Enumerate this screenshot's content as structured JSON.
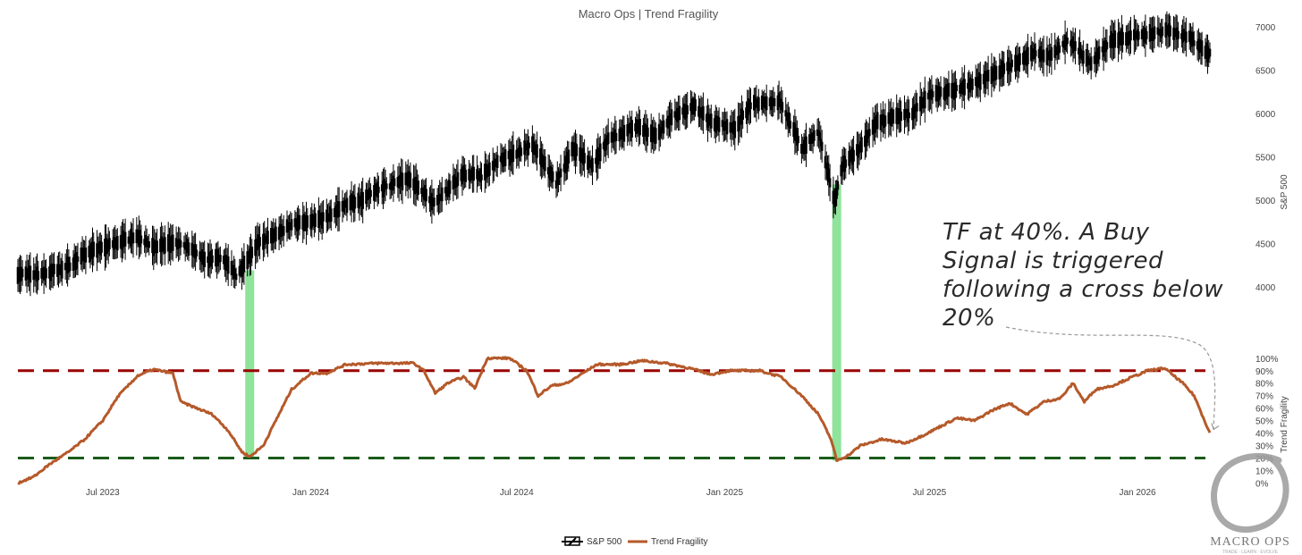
{
  "chart_data": {
    "type": "line",
    "title": "Macro Ops | Trend Fragility",
    "x_ticks": [
      "Jul 2023",
      "Jan 2024",
      "Jul 2024",
      "Jan 2025",
      "Jul 2025",
      "Jan 2026"
    ],
    "x_range": [
      "2023-04-17",
      "2026-03-06"
    ],
    "y_left": {
      "label": "S&P 500",
      "range": [
        3700,
        7050
      ],
      "ticks": [
        "4000",
        "4500",
        "5000",
        "5500",
        "6000",
        "6500",
        "7000"
      ]
    },
    "y_right": {
      "label": "Trend Fragility",
      "range": [
        -14,
        102
      ],
      "ticks": [
        "0%",
        "10%",
        "20%",
        "30%",
        "40%",
        "50%",
        "60%",
        "70%",
        "80%",
        "90%",
        "100%"
      ]
    },
    "series": [
      {
        "name": "S&P 500",
        "style": "candlestick",
        "color": "#000000",
        "points": [
          [
            "2023-04-17",
            4150
          ],
          [
            "2023-05-01",
            4140
          ],
          [
            "2023-05-15",
            4170
          ],
          [
            "2023-06-01",
            4240
          ],
          [
            "2023-06-15",
            4380
          ],
          [
            "2023-07-01",
            4450
          ],
          [
            "2023-07-15",
            4520
          ],
          [
            "2023-08-01",
            4590
          ],
          [
            "2023-08-15",
            4450
          ],
          [
            "2023-09-01",
            4510
          ],
          [
            "2023-09-15",
            4450
          ],
          [
            "2023-10-01",
            4300
          ],
          [
            "2023-10-15",
            4330
          ],
          [
            "2023-10-27",
            4130
          ],
          [
            "2023-11-15",
            4500
          ],
          [
            "2023-12-01",
            4600
          ],
          [
            "2023-12-15",
            4720
          ],
          [
            "2024-01-02",
            4750
          ],
          [
            "2024-01-15",
            4800
          ],
          [
            "2024-02-01",
            4950
          ],
          [
            "2024-02-15",
            5000
          ],
          [
            "2024-03-01",
            5130
          ],
          [
            "2024-03-28",
            5250
          ],
          [
            "2024-04-19",
            4970
          ],
          [
            "2024-05-15",
            5300
          ],
          [
            "2024-06-01",
            5280
          ],
          [
            "2024-06-15",
            5450
          ],
          [
            "2024-07-15",
            5630
          ],
          [
            "2024-08-05",
            5200
          ],
          [
            "2024-08-20",
            5600
          ],
          [
            "2024-09-06",
            5400
          ],
          [
            "2024-09-20",
            5700
          ],
          [
            "2024-10-15",
            5850
          ],
          [
            "2024-11-01",
            5730
          ],
          [
            "2024-11-15",
            5950
          ],
          [
            "2024-12-06",
            6080
          ],
          [
            "2024-12-20",
            5900
          ],
          [
            "2025-01-10",
            5830
          ],
          [
            "2025-01-24",
            6100
          ],
          [
            "2025-02-19",
            6140
          ],
          [
            "2025-03-10",
            5600
          ],
          [
            "2025-03-25",
            5780
          ],
          [
            "2025-04-08",
            4980
          ],
          [
            "2025-04-15",
            5400
          ],
          [
            "2025-05-01",
            5600
          ],
          [
            "2025-05-15",
            5900
          ],
          [
            "2025-06-01",
            5950
          ],
          [
            "2025-06-15",
            6000
          ],
          [
            "2025-07-01",
            6200
          ],
          [
            "2025-08-01",
            6300
          ],
          [
            "2025-09-01",
            6480
          ],
          [
            "2025-10-01",
            6700
          ],
          [
            "2025-10-15",
            6650
          ],
          [
            "2025-11-01",
            6850
          ],
          [
            "2025-11-20",
            6580
          ],
          [
            "2025-12-10",
            6850
          ],
          [
            "2026-01-05",
            6900
          ],
          [
            "2026-01-28",
            6960
          ],
          [
            "2026-02-15",
            6880
          ],
          [
            "2026-03-06",
            6680
          ]
        ]
      },
      {
        "name": "Trend Fragility",
        "style": "line",
        "color": "#b5592a",
        "points": [
          [
            "2023-04-17",
            0
          ],
          [
            "2023-05-01",
            5
          ],
          [
            "2023-05-15",
            15
          ],
          [
            "2023-06-01",
            25
          ],
          [
            "2023-06-15",
            35
          ],
          [
            "2023-07-01",
            50
          ],
          [
            "2023-07-15",
            70
          ],
          [
            "2023-08-01",
            86
          ],
          [
            "2023-08-15",
            91
          ],
          [
            "2023-09-01",
            88
          ],
          [
            "2023-09-08",
            65
          ],
          [
            "2023-09-22",
            60
          ],
          [
            "2023-10-06",
            55
          ],
          [
            "2023-10-20",
            42
          ],
          [
            "2023-11-01",
            25
          ],
          [
            "2023-11-08",
            21
          ],
          [
            "2023-11-20",
            30
          ],
          [
            "2023-12-01",
            50
          ],
          [
            "2023-12-15",
            75
          ],
          [
            "2024-01-01",
            88
          ],
          [
            "2024-01-15",
            88
          ],
          [
            "2024-02-01",
            95
          ],
          [
            "2024-03-01",
            96
          ],
          [
            "2024-04-01",
            96
          ],
          [
            "2024-04-10",
            90
          ],
          [
            "2024-04-20",
            72
          ],
          [
            "2024-05-01",
            80
          ],
          [
            "2024-05-15",
            85
          ],
          [
            "2024-05-25",
            76
          ],
          [
            "2024-06-05",
            100
          ],
          [
            "2024-06-25",
            100
          ],
          [
            "2024-07-10",
            90
          ],
          [
            "2024-07-20",
            70
          ],
          [
            "2024-08-01",
            78
          ],
          [
            "2024-08-15",
            80
          ],
          [
            "2024-08-25",
            86
          ],
          [
            "2024-09-10",
            95
          ],
          [
            "2024-10-01",
            95
          ],
          [
            "2024-10-20",
            98
          ],
          [
            "2024-11-10",
            96
          ],
          [
            "2024-12-01",
            92
          ],
          [
            "2024-12-20",
            87
          ],
          [
            "2025-01-05",
            90
          ],
          [
            "2025-02-01",
            90
          ],
          [
            "2025-02-20",
            85
          ],
          [
            "2025-03-10",
            70
          ],
          [
            "2025-03-25",
            55
          ],
          [
            "2025-04-05",
            35
          ],
          [
            "2025-04-10",
            18
          ],
          [
            "2025-04-20",
            22
          ],
          [
            "2025-05-01",
            30
          ],
          [
            "2025-05-20",
            35
          ],
          [
            "2025-06-10",
            32
          ],
          [
            "2025-06-25",
            38
          ],
          [
            "2025-07-10",
            45
          ],
          [
            "2025-07-25",
            52
          ],
          [
            "2025-08-10",
            50
          ],
          [
            "2025-08-25",
            58
          ],
          [
            "2025-09-10",
            64
          ],
          [
            "2025-09-25",
            55
          ],
          [
            "2025-10-10",
            65
          ],
          [
            "2025-10-25",
            68
          ],
          [
            "2025-11-05",
            80
          ],
          [
            "2025-11-15",
            65
          ],
          [
            "2025-11-25",
            75
          ],
          [
            "2025-12-10",
            78
          ],
          [
            "2025-12-25",
            84
          ],
          [
            "2026-01-10",
            90
          ],
          [
            "2026-01-25",
            92
          ],
          [
            "2026-02-10",
            80
          ],
          [
            "2026-02-20",
            70
          ],
          [
            "2026-03-06",
            40
          ]
        ]
      }
    ],
    "thresholds": [
      {
        "value": 90,
        "color": "#990000"
      },
      {
        "value": 20,
        "color": "#1a5c1a"
      }
    ],
    "highlight_bars": [
      {
        "date": "2023-11-08",
        "from_price": 4190,
        "to_tf": 20
      },
      {
        "date": "2025-04-10",
        "from_price": 5180,
        "to_tf": 18
      }
    ],
    "annotation": {
      "lines": [
        "TF at 40%. A Buy",
        "Signal is triggered",
        "following a cross below",
        "20%"
      ],
      "target_date": "2026-03-06",
      "target_tf": 40
    },
    "legend": [
      "S&P 500",
      "Trend Fragility"
    ],
    "legend_placement": "bottom-center",
    "grid": false
  },
  "logo": {
    "text": "MACRO OPS",
    "tagline": "TRADE · LEARN · EVOLVE"
  }
}
